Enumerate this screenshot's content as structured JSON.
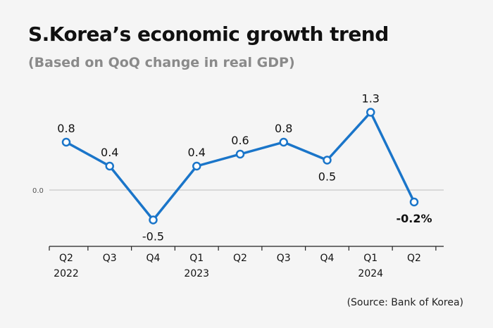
{
  "chart_data": {
    "type": "line",
    "title": "S.Korea’s economic growth trend",
    "subtitle": "(Based on QoQ change in real GDP)",
    "source": "(Source: Bank of Korea)",
    "categories": [
      "Q2",
      "Q3",
      "Q4",
      "Q1",
      "Q2",
      "Q3",
      "Q4",
      "Q1",
      "Q2"
    ],
    "years": [
      "2022",
      "",
      "",
      "2023",
      "",
      "",
      "",
      "2024",
      ""
    ],
    "values": [
      0.8,
      0.4,
      -0.5,
      0.4,
      0.6,
      0.8,
      0.5,
      1.3,
      -0.2
    ],
    "data_labels": [
      "0.8",
      "0.4",
      "-0.5",
      "0.4",
      "0.6",
      "0.8",
      "0.5",
      "1.3",
      "-0.2%"
    ],
    "label_positions": [
      "above",
      "above",
      "below",
      "above",
      "above",
      "above",
      "below",
      "above",
      "below"
    ],
    "zero_label": "0.0",
    "xlabel": "",
    "ylabel": "",
    "line_color": "#1a75c9",
    "marker_fill": "#ffffff",
    "zero_line_color": "#bdbdbd",
    "axis_color": "#222222"
  }
}
